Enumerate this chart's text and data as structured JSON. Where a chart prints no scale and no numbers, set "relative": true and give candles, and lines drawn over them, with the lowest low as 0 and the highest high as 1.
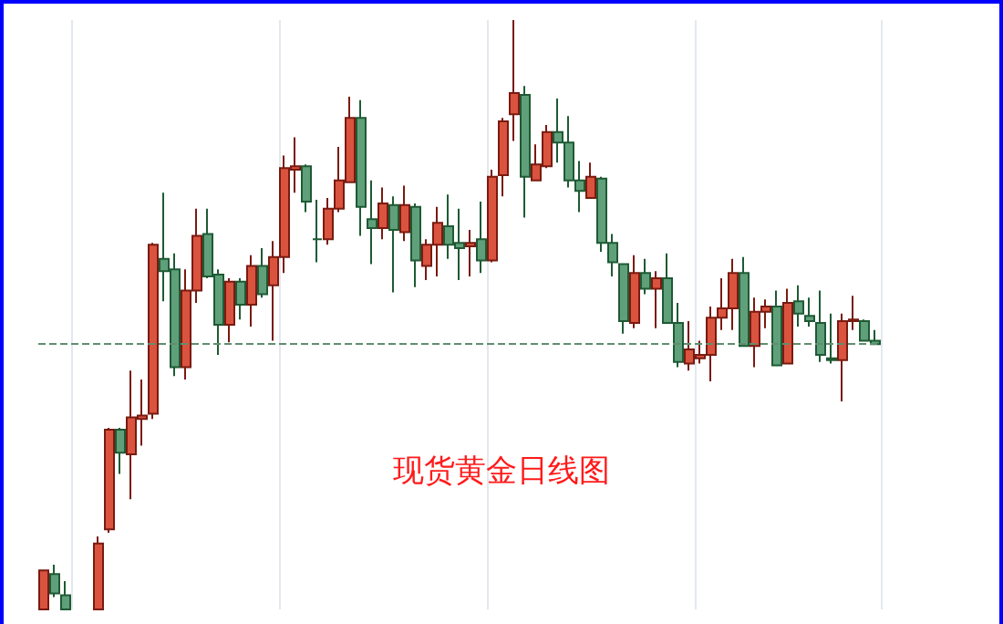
{
  "chart_data": {
    "type": "candlestick",
    "title": "现货黄金日线图",
    "relative": true,
    "grid": true,
    "categories": [
      null,
      null,
      null,
      null,
      null,
      null,
      null,
      null,
      null,
      null,
      null,
      null,
      null,
      null,
      null,
      null,
      null,
      null,
      null,
      null,
      null,
      null,
      null,
      null,
      null,
      null,
      null,
      null,
      null,
      null,
      null,
      null,
      null,
      null,
      null,
      null,
      null,
      null,
      null,
      null,
      null,
      null,
      null,
      null,
      null,
      null,
      null,
      null,
      null,
      null,
      null,
      null,
      null,
      null,
      null,
      null,
      null,
      null,
      null,
      null,
      null,
      null,
      null,
      null,
      null,
      null,
      null,
      null,
      null,
      null,
      null,
      null,
      null,
      null,
      null,
      null,
      null
    ],
    "ohlc": [
      [
        0,
        0.066,
        0,
        0.066
      ],
      [
        0.06,
        0.076,
        0.021,
        0.027
      ],
      [
        0.024,
        0.048,
        0,
        0
      ],
      null,
      null,
      [
        0,
        0.124,
        0,
        0.112
      ],
      [
        0.136,
        0.308,
        0.13,
        0.305
      ],
      [
        0.305,
        0.308,
        0.23,
        0.266
      ],
      [
        0.263,
        0.405,
        0.187,
        0.326
      ],
      [
        0.323,
        0.39,
        0.278,
        0.329
      ],
      [
        0.332,
        0.622,
        0.323,
        0.619
      ],
      [
        0.595,
        0.707,
        0.523,
        0.574
      ],
      [
        0.577,
        0.604,
        0.396,
        0.411
      ],
      [
        0.411,
        0.577,
        0.39,
        0.541
      ],
      [
        0.541,
        0.68,
        0.52,
        0.634
      ],
      [
        0.637,
        0.68,
        0.562,
        0.565
      ],
      [
        0.568,
        0.577,
        0.432,
        0.483
      ],
      [
        0.483,
        0.562,
        0.453,
        0.556
      ],
      [
        0.556,
        0.562,
        0.492,
        0.517
      ],
      [
        0.517,
        0.601,
        0.48,
        0.583
      ],
      [
        0.583,
        0.613,
        0.529,
        0.535
      ],
      [
        0.55,
        0.625,
        0.456,
        0.598
      ],
      [
        0.598,
        0.77,
        0.571,
        0.749
      ],
      [
        0.746,
        0.801,
        0.707,
        0.752
      ],
      [
        0.752,
        0.755,
        0.674,
        0.692
      ],
      [
        0.628,
        0.695,
        0.589,
        0.628
      ],
      [
        0.628,
        0.698,
        0.619,
        0.68
      ],
      [
        0.68,
        0.785,
        0.674,
        0.728
      ],
      [
        0.725,
        0.87,
        0.725,
        0.834
      ],
      [
        0.834,
        0.864,
        0.634,
        0.683
      ],
      [
        0.662,
        0.728,
        0.586,
        0.647
      ],
      [
        0.647,
        0.716,
        0.628,
        0.689
      ],
      [
        0.686,
        0.701,
        0.538,
        0.644
      ],
      [
        0.64,
        0.719,
        0.625,
        0.686
      ],
      [
        0.683,
        0.689,
        0.547,
        0.592
      ],
      [
        0.583,
        0.628,
        0.559,
        0.619
      ],
      [
        0.619,
        0.683,
        0.565,
        0.656
      ],
      [
        0.65,
        0.704,
        0.595,
        0.619
      ],
      [
        0.622,
        0.68,
        0.559,
        0.613
      ],
      [
        0.616,
        0.644,
        0.565,
        0.622
      ],
      [
        0.628,
        0.692,
        0.571,
        0.592
      ],
      [
        0.592,
        0.746,
        0.589,
        0.734
      ],
      [
        0.737,
        0.834,
        0.701,
        0.828
      ],
      [
        0.84,
        1,
        0.795,
        0.876
      ],
      [
        0.873,
        0.888,
        0.665,
        0.734
      ],
      [
        0.728,
        0.789,
        0.728,
        0.755
      ],
      [
        0.752,
        0.822,
        0.749,
        0.81
      ],
      [
        0.81,
        0.867,
        0.758,
        0.792
      ],
      [
        0.792,
        0.837,
        0.716,
        0.728
      ],
      [
        0.728,
        0.761,
        0.674,
        0.71
      ],
      [
        0.698,
        0.758,
        0.698,
        0.734
      ],
      [
        0.731,
        0.734,
        0.607,
        0.622
      ],
      [
        0.622,
        0.637,
        0.565,
        0.589
      ],
      [
        0.586,
        0.586,
        0.468,
        0.489
      ],
      [
        0.486,
        0.601,
        0.477,
        0.571
      ],
      [
        0.571,
        0.595,
        0.535,
        0.544
      ],
      [
        0.544,
        0.574,
        0.477,
        0.562
      ],
      [
        0.562,
        0.604,
        0.486,
        0.486
      ],
      [
        0.486,
        0.52,
        0.411,
        0.42
      ],
      [
        0.417,
        0.489,
        0.405,
        0.441
      ],
      [
        0.426,
        0.456,
        0.417,
        0.432
      ],
      [
        0.432,
        0.514,
        0.387,
        0.495
      ],
      [
        0.495,
        0.562,
        0.474,
        0.511
      ],
      [
        0.511,
        0.595,
        0.474,
        0.571
      ],
      [
        0.571,
        0.598,
        0.447,
        0.447
      ],
      [
        0.447,
        0.529,
        0.411,
        0.505
      ],
      [
        0.505,
        0.526,
        0.477,
        0.514
      ],
      [
        0.514,
        0.541,
        0.414,
        0.414
      ],
      [
        0.417,
        0.544,
        0.417,
        0.52
      ],
      [
        0.523,
        0.55,
        0.48,
        0.502
      ],
      [
        0.498,
        0.529,
        0.48,
        0.489
      ],
      [
        0.486,
        0.541,
        0.42,
        0.432
      ],
      [
        0.426,
        0.502,
        0.417,
        0.423
      ],
      [
        0.423,
        0.502,
        0.353,
        0.489
      ],
      [
        0.489,
        0.532,
        0.474,
        0.492
      ],
      [
        0.489,
        0.492,
        0.456,
        0.456
      ],
      [
        0.456,
        0.474,
        0.45,
        0.45
      ]
    ],
    "ref_lines": [
      {
        "axis": "y",
        "value": 0.453,
        "color": "#5f8f6e",
        "line_style": "dashed"
      }
    ]
  }
}
